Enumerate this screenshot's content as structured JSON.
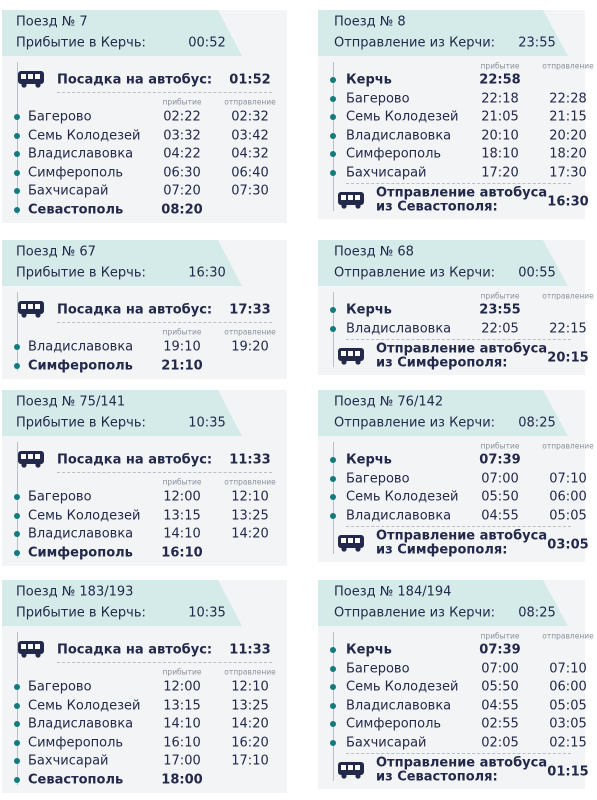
{
  "rows": [
    {
      "left": {
        "train": "Поезд № 7",
        "header_label": "Прибытие в Керчь:",
        "header_time": "00:52",
        "bus_label": "Посадка на автобус:",
        "bus_time": "01:52",
        "col_arrival": "прибытие",
        "col_departure": "отправление",
        "stops": [
          {
            "name": "Багерово",
            "arrival": "02:22",
            "departure": "02:32"
          },
          {
            "name": "Семь Колодезей",
            "arrival": "03:32",
            "departure": "03:42"
          },
          {
            "name": "Владиславовка",
            "arrival": "04:22",
            "departure": "04:32"
          },
          {
            "name": "Симферополь",
            "arrival": "06:30",
            "departure": "06:40"
          },
          {
            "name": "Бахчисарай",
            "arrival": "07:20",
            "departure": "07:30"
          },
          {
            "name": "Севастополь",
            "arrival": "08:20"
          }
        ]
      },
      "right": {
        "train": "Поезд № 8",
        "header_label": "Отправление из Керчи:",
        "header_time": "23:55",
        "col_arrival": "прибытие",
        "col_departure": "отправление",
        "stops": [
          {
            "name": "Керчь",
            "arrival": "22:58"
          },
          {
            "name": "Багерово",
            "arrival": "22:18",
            "departure": "22:28"
          },
          {
            "name": "Семь Колодезей",
            "arrival": "21:05",
            "departure": "21:15"
          },
          {
            "name": "Владиславовка",
            "arrival": "20:10",
            "departure": "20:20"
          },
          {
            "name": "Симферополь",
            "arrival": "18:10",
            "departure": "18:20"
          },
          {
            "name": "Бахчисарай",
            "arrival": "17:20",
            "departure": "17:30"
          }
        ],
        "footer_lines": [
          "Отправление автобуса",
          "из Севастополя:"
        ],
        "footer_time": "16:30"
      }
    },
    {
      "left": {
        "train": "Поезд № 67",
        "header_label": "Прибытие в Керчь:",
        "header_time": "16:30",
        "bus_label": "Посадка на автобус:",
        "bus_time": "17:33",
        "col_arrival": "прибытие",
        "col_departure": "отправление",
        "stops": [
          {
            "name": "Владиславовка",
            "arrival": "19:10",
            "departure": "19:20"
          },
          {
            "name": "Симферополь",
            "arrival": "21:10"
          }
        ]
      },
      "right": {
        "train": "Поезд № 68",
        "header_label": "Отправление из Керчи:",
        "header_time": "00:55",
        "col_arrival": "прибытие",
        "col_departure": "отправление",
        "stops": [
          {
            "name": "Керчь",
            "arrival": "23:55"
          },
          {
            "name": "Владиславовка",
            "arrival": "22:05",
            "departure": "22:15"
          }
        ],
        "footer_lines": [
          "Отправление автобуса",
          "из Симферополя:"
        ],
        "footer_time": "20:15"
      }
    },
    {
      "left": {
        "train": "Поезд № 75/141",
        "header_label": "Прибытие в Керчь:",
        "header_time": "10:35",
        "bus_label": "Посадка на автобус:",
        "bus_time": "11:33",
        "col_arrival": "прибытие",
        "col_departure": "отправление",
        "stops": [
          {
            "name": "Багерово",
            "arrival": "12:00",
            "departure": "12:10"
          },
          {
            "name": "Семь Колодезей",
            "arrival": "13:15",
            "departure": "13:25"
          },
          {
            "name": "Владиславовка",
            "arrival": "14:10",
            "departure": "14:20"
          },
          {
            "name": "Симферополь",
            "arrival": "16:10"
          }
        ]
      },
      "right": {
        "train": "Поезд № 76/142",
        "header_label": "Отправление из Керчи:",
        "header_time": "08:25",
        "col_arrival": "прибытие",
        "col_departure": "отправление",
        "stops": [
          {
            "name": "Керчь",
            "arrival": "07:39"
          },
          {
            "name": "Багерово",
            "arrival": "07:00",
            "departure": "07:10"
          },
          {
            "name": "Семь Колодезей",
            "arrival": "05:50",
            "departure": "06:00"
          },
          {
            "name": "Владиславовка",
            "arrival": "04:55",
            "departure": "05:05"
          }
        ],
        "footer_lines": [
          "Отправление автобуса",
          "из Симферополя:"
        ],
        "footer_time": "03:05"
      }
    },
    {
      "left": {
        "train": "Поезд № 183/193",
        "header_label": "Прибытие в Керчь:",
        "header_time": "10:35",
        "bus_label": "Посадка на автобус:",
        "bus_time": "11:33",
        "col_arrival": "прибытие",
        "col_departure": "отправление",
        "stops": [
          {
            "name": "Багерово",
            "arrival": "12:00",
            "departure": "12:10"
          },
          {
            "name": "Семь Колодезей",
            "arrival": "13:15",
            "departure": "13:25"
          },
          {
            "name": "Владиславовка",
            "arrival": "14:10",
            "departure": "14:20"
          },
          {
            "name": "Симферополь",
            "arrival": "16:10",
            "departure": "16:20"
          },
          {
            "name": "Бахчисарай",
            "arrival": "17:00",
            "departure": "17:10"
          },
          {
            "name": "Севастополь",
            "arrival": "18:00"
          }
        ]
      },
      "right": {
        "train": "Поезд № 184/194",
        "header_label": "Отправление из Керчи:",
        "header_time": "08:25",
        "col_arrival": "прибытие",
        "col_departure": "отправление",
        "stops": [
          {
            "name": "Керчь",
            "arrival": "07:39"
          },
          {
            "name": "Багерово",
            "arrival": "07:00",
            "departure": "07:10"
          },
          {
            "name": "Семь Колодезей",
            "arrival": "05:50",
            "departure": "06:00"
          },
          {
            "name": "Владиславовка",
            "arrival": "04:55",
            "departure": "05:05"
          },
          {
            "name": "Симферополь",
            "arrival": "02:55",
            "departure": "03:05"
          },
          {
            "name": "Бахчисарай",
            "arrival": "02:05",
            "departure": "02:15"
          }
        ],
        "footer_lines": [
          "Отправление автобуса",
          "из Севастополя:"
        ],
        "footer_time": "01:15"
      }
    }
  ]
}
